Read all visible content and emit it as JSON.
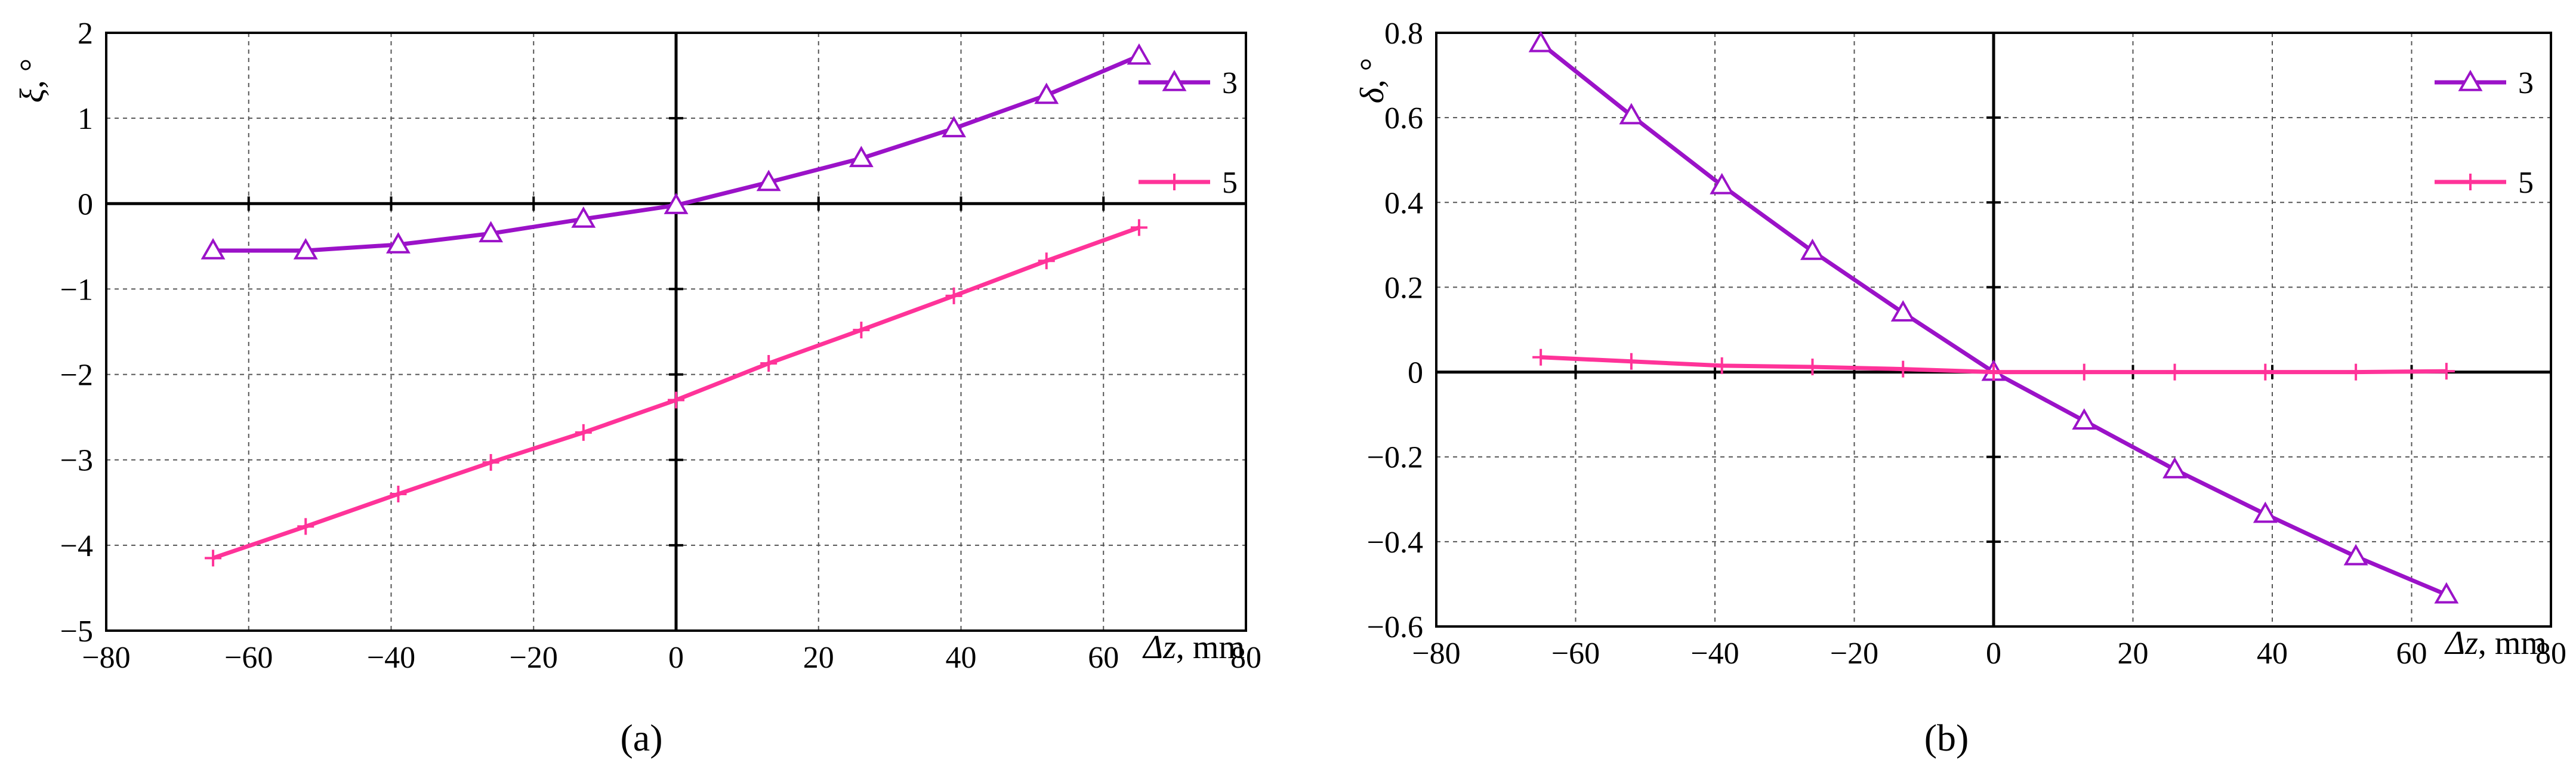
{
  "chart_data": [
    {
      "type": "line",
      "caption": "(a)",
      "xlabel_var": "Δz",
      "xlabel_unit": ", mm",
      "ylabel_var": "ξ",
      "ylabel_unit": ", °",
      "xlim": [
        -80,
        80
      ],
      "ylim": [
        -5,
        2
      ],
      "xticks": [
        -80,
        -60,
        -40,
        -20,
        0,
        20,
        40,
        60,
        80
      ],
      "xtick_labels": [
        "−80",
        "−60",
        "−40",
        "−20",
        "0",
        "20",
        "40",
        "60",
        "80"
      ],
      "yticks": [
        -5,
        -4,
        -3,
        -2,
        -1,
        0,
        1,
        2
      ],
      "ytick_labels": [
        "−5",
        "−4",
        "−3",
        "−2",
        "−1",
        "0",
        "1",
        "2"
      ],
      "grid": true,
      "legend_position": "top-right",
      "series": [
        {
          "name": "3",
          "color": "#9B12C8",
          "marker": "triangle",
          "x": [
            -65,
            -52,
            -39,
            -26,
            -13,
            0,
            13,
            26,
            39,
            52,
            65
          ],
          "y": [
            -0.55,
            -0.55,
            -0.48,
            -0.35,
            -0.18,
            -0.02,
            0.25,
            0.53,
            0.88,
            1.27,
            1.73
          ]
        },
        {
          "name": "5",
          "color": "#FF3399",
          "marker": "plus",
          "x": [
            -65,
            -52,
            -39,
            -26,
            -13,
            0,
            13,
            26,
            39,
            52,
            65
          ],
          "y": [
            -4.15,
            -3.78,
            -3.4,
            -3.03,
            -2.68,
            -2.3,
            -1.87,
            -1.48,
            -1.08,
            -0.67,
            -0.28
          ]
        }
      ]
    },
    {
      "type": "line",
      "caption": "(b)",
      "xlabel_var": "Δz",
      "xlabel_unit": ", mm",
      "ylabel_var": "δ",
      "ylabel_unit": ", °",
      "xlim": [
        -80,
        80
      ],
      "ylim": [
        -0.6,
        0.8
      ],
      "xticks": [
        -80,
        -60,
        -40,
        -20,
        0,
        20,
        40,
        60,
        80
      ],
      "xtick_labels": [
        "−80",
        "−60",
        "−40",
        "−20",
        "0",
        "20",
        "40",
        "60",
        "80"
      ],
      "yticks": [
        -0.6,
        -0.4,
        -0.2,
        0,
        0.2,
        0.4,
        0.6,
        0.8
      ],
      "ytick_labels": [
        "−0.6",
        "−0.4",
        "−0.2",
        "0",
        "0.2",
        "0.4",
        "0.6",
        "0.8"
      ],
      "grid": true,
      "legend_position": "top-right",
      "series": [
        {
          "name": "3",
          "color": "#9B12C8",
          "marker": "triangle",
          "x": [
            -65,
            -52,
            -39,
            -26,
            -13,
            0,
            13,
            26,
            39,
            52,
            65
          ],
          "y": [
            0.775,
            0.605,
            0.44,
            0.285,
            0.14,
            0.0,
            -0.115,
            -0.23,
            -0.335,
            -0.435,
            -0.525
          ]
        },
        {
          "name": "5",
          "color": "#FF3399",
          "marker": "plus",
          "x": [
            -65,
            -52,
            -39,
            -26,
            -13,
            0,
            13,
            26,
            39,
            52,
            65
          ],
          "y": [
            0.035,
            0.025,
            0.015,
            0.012,
            0.007,
            0.0,
            0.0,
            0.0,
            0.0,
            0.0,
            0.002
          ]
        }
      ]
    }
  ]
}
